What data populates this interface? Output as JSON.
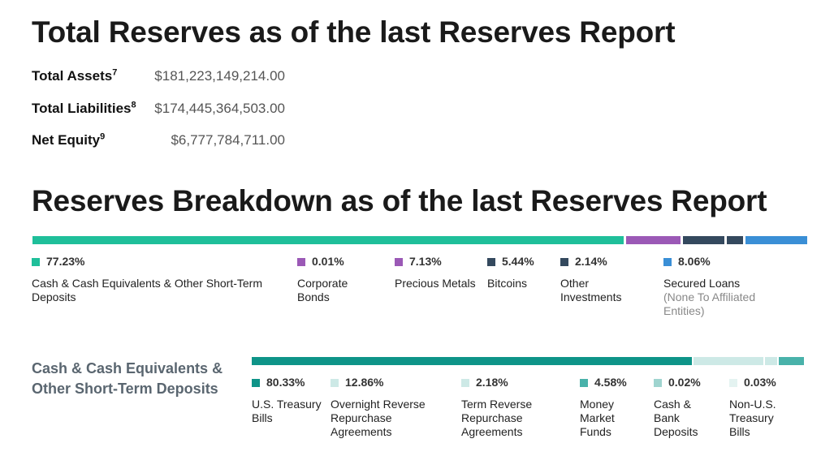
{
  "titles": {
    "total_reserves": "Total Reserves as of the last Reserves Report",
    "breakdown": "Reserves Breakdown as of the last Reserves Report"
  },
  "summary": [
    {
      "label": "Total Assets",
      "sup": "7",
      "value": "$181,223,149,214.00"
    },
    {
      "label": "Total Liabilities",
      "sup": "8",
      "value": "$174,445,364,503.00"
    },
    {
      "label": "Net Equity",
      "sup": "9",
      "value": "$6,777,784,711.00"
    }
  ],
  "chart_data": [
    {
      "type": "bar",
      "stacked": true,
      "series": [
        {
          "name": "Cash & Cash Equivalents & Other Short-Term Deposits",
          "pct_label": "77.23%",
          "value": 77.23,
          "color": "#1fbf9a"
        },
        {
          "name": "Corporate Bonds",
          "pct_label": "0.01%",
          "value": 0.01,
          "color": "#9b59b6"
        },
        {
          "name": "Precious Metals",
          "pct_label": "7.13%",
          "value": 7.13,
          "color": "#9b59b6"
        },
        {
          "name": "Bitcoins",
          "pct_label": "5.44%",
          "value": 5.44,
          "color": "#34495e"
        },
        {
          "name": "Other Investments",
          "pct_label": "2.14%",
          "value": 2.14,
          "color": "#34495e"
        },
        {
          "name": "Secured Loans",
          "note": "(None To Affiliated Entities)",
          "pct_label": "8.06%",
          "value": 8.06,
          "color": "#3a8fd6"
        }
      ]
    },
    {
      "type": "bar",
      "stacked": true,
      "title": "Cash & Cash Equivalents & Other Short-Term Deposits",
      "series": [
        {
          "name": "U.S. Treasury Bills",
          "pct_label": "80.33%",
          "value": 80.33,
          "color": "#0e9488"
        },
        {
          "name": "Overnight Reverse Repurchase Agreements",
          "pct_label": "12.86%",
          "value": 12.86,
          "color": "#cde9e6"
        },
        {
          "name": "Term Reverse Repurchase Agreements",
          "pct_label": "2.18%",
          "value": 2.18,
          "color": "#cde9e6"
        },
        {
          "name": "Money Market Funds",
          "pct_label": "4.58%",
          "value": 4.58,
          "color": "#49b2aa"
        },
        {
          "name": "Cash & Bank Deposits",
          "pct_label": "0.02%",
          "value": 0.02,
          "color": "#9fd4cf"
        },
        {
          "name": "Non-U.S. Treasury Bills",
          "pct_label": "0.03%",
          "value": 0.03,
          "color": "#e4f3f1"
        }
      ]
    }
  ]
}
